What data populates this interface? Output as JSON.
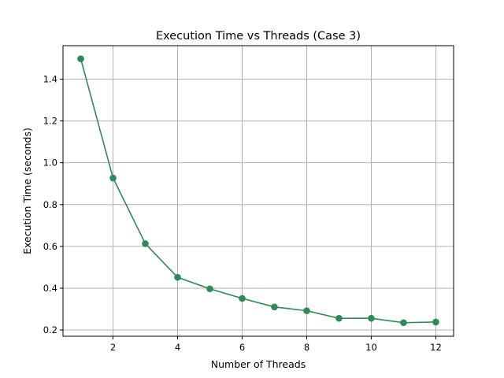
{
  "chart_data": {
    "type": "line",
    "title": "Execution Time vs Threads (Case 3)",
    "xlabel": "Number of Threads",
    "ylabel": "Execution Time (seconds)",
    "x": [
      1,
      2,
      3,
      4,
      5,
      6,
      7,
      8,
      9,
      10,
      11,
      12
    ],
    "series": [
      {
        "values": [
          1.497,
          0.927,
          0.613,
          0.452,
          0.397,
          0.351,
          0.31,
          0.292,
          0.256,
          0.256,
          0.235,
          0.238
        ]
      }
    ],
    "xlim": [
      0.45,
      12.55
    ],
    "ylim": [
      0.17,
      1.56
    ],
    "xticks": [
      2,
      4,
      6,
      8,
      10,
      12
    ],
    "xtick_labels": [
      "2",
      "4",
      "6",
      "8",
      "10",
      "12"
    ],
    "yticks": [
      0.2,
      0.4,
      0.6,
      0.8,
      1.0,
      1.2,
      1.4
    ],
    "ytick_labels": [
      "0.2",
      "0.4",
      "0.6",
      "0.8",
      "1.0",
      "1.2",
      "1.4"
    ],
    "grid": true,
    "line_color": "#2e8b57",
    "marker": "circle"
  }
}
